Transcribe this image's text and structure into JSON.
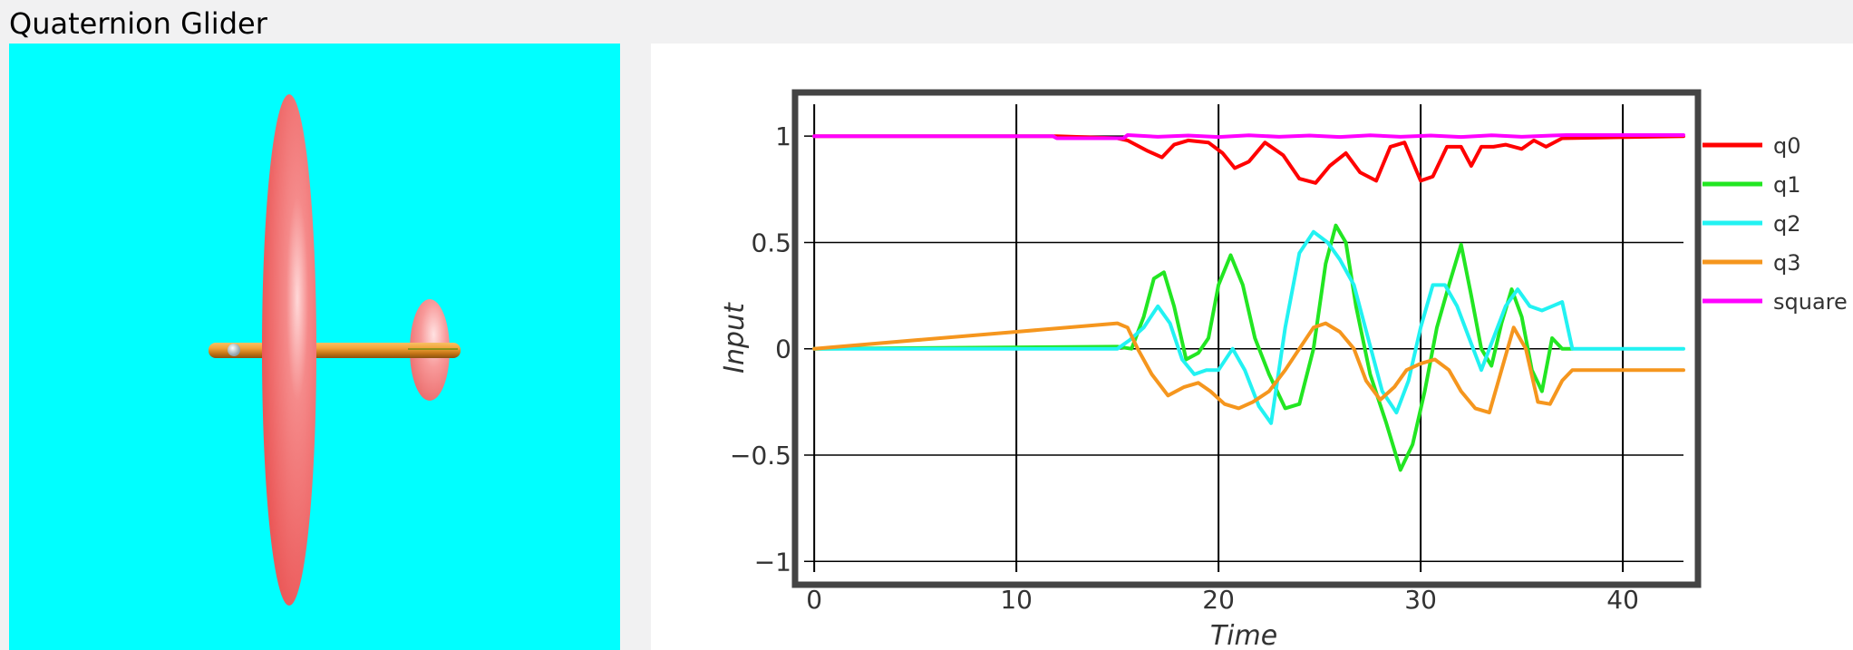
{
  "app": {
    "title": "Quaternion Glider"
  },
  "scene": {
    "background": "#00ffff",
    "wing_color": "#f05a5a",
    "fuselage_color": "#e8a030",
    "icon": "glider-3d-model"
  },
  "chart_data": {
    "type": "line",
    "title": "",
    "xlabel": "Time",
    "ylabel": "Input",
    "xlim": [
      -0.5,
      43
    ],
    "ylim": [
      -1.05,
      1.15
    ],
    "xticks": [
      0,
      10,
      20,
      30,
      40
    ],
    "xtick_labels": [
      "0",
      "10",
      "20",
      "30",
      "40"
    ],
    "yticks": [
      -1,
      -0.5,
      0,
      0.5,
      1
    ],
    "ytick_labels": [
      "−1",
      "−0.5",
      "0",
      "0.5",
      "1"
    ],
    "grid": true,
    "legend_position": "right",
    "series": [
      {
        "name": "q0",
        "color": "#ff0000",
        "x": [
          0,
          12,
          15,
          15.5,
          16.5,
          17.2,
          17.8,
          18.5,
          19.5,
          20.2,
          20.8,
          21.5,
          22.3,
          23.2,
          24,
          24.8,
          25.5,
          26.3,
          27,
          27.8,
          28.5,
          29.2,
          30,
          30.6,
          31.3,
          32,
          32.5,
          33,
          33.6,
          34.2,
          35,
          35.6,
          36.2,
          37,
          43
        ],
        "y": [
          1,
          1,
          0.99,
          0.98,
          0.93,
          0.9,
          0.96,
          0.98,
          0.97,
          0.92,
          0.85,
          0.88,
          0.97,
          0.91,
          0.8,
          0.78,
          0.86,
          0.92,
          0.83,
          0.79,
          0.95,
          0.97,
          0.79,
          0.81,
          0.95,
          0.95,
          0.86,
          0.95,
          0.95,
          0.96,
          0.94,
          0.98,
          0.95,
          0.99,
          1
        ]
      },
      {
        "name": "q1",
        "color": "#22e622",
        "x": [
          0,
          15,
          15.7,
          16.3,
          16.8,
          17.3,
          17.8,
          18.4,
          19,
          19.5,
          20,
          20.6,
          21.2,
          21.8,
          22.5,
          23.3,
          24,
          24.7,
          25.3,
          25.8,
          26.3,
          26.8,
          27.5,
          28.3,
          29,
          29.6,
          30.2,
          30.8,
          31.4,
          32,
          32.5,
          33,
          33.5,
          34,
          34.5,
          35,
          35.5,
          36,
          36.5,
          37,
          37.5
        ],
        "y": [
          0,
          0.01,
          0,
          0.15,
          0.33,
          0.36,
          0.2,
          -0.05,
          -0.02,
          0.05,
          0.3,
          0.44,
          0.3,
          0.05,
          -0.12,
          -0.28,
          -0.26,
          0,
          0.4,
          0.58,
          0.5,
          0.2,
          -0.12,
          -0.35,
          -0.57,
          -0.45,
          -0.2,
          0.1,
          0.3,
          0.49,
          0.25,
          0,
          -0.08,
          0.12,
          0.28,
          0.15,
          -0.1,
          -0.2,
          0.05,
          0,
          0
        ]
      },
      {
        "name": "q2",
        "color": "#22f2f2",
        "x": [
          0,
          15,
          15.6,
          16.3,
          17,
          17.6,
          18.2,
          18.8,
          19.4,
          20,
          20.7,
          21.3,
          22,
          22.6,
          23.3,
          24,
          24.7,
          25.4,
          26,
          26.7,
          27.4,
          28.1,
          28.8,
          29.4,
          30,
          30.6,
          31.2,
          31.8,
          32.4,
          33,
          33.6,
          34.2,
          34.8,
          35.4,
          36,
          36.5,
          37,
          37.5,
          43
        ],
        "y": [
          0,
          0,
          0.04,
          0.1,
          0.2,
          0.12,
          -0.05,
          -0.12,
          -0.1,
          -0.1,
          0,
          -0.1,
          -0.27,
          -0.35,
          0.1,
          0.45,
          0.55,
          0.5,
          0.42,
          0.3,
          0.05,
          -0.2,
          -0.3,
          -0.15,
          0.1,
          0.3,
          0.3,
          0.2,
          0.05,
          -0.1,
          0.05,
          0.2,
          0.28,
          0.2,
          0.18,
          0.2,
          0.22,
          0,
          0
        ]
      },
      {
        "name": "q3",
        "color": "#f5961e",
        "x": [
          0,
          5,
          10,
          15,
          15.5,
          16,
          16.7,
          17.5,
          18.3,
          19,
          19.6,
          20.3,
          21,
          21.7,
          22.5,
          23.3,
          24,
          24.7,
          25.3,
          26,
          26.7,
          27.3,
          28,
          28.7,
          29.3,
          30,
          30.7,
          31.4,
          32,
          32.7,
          33.4,
          34,
          34.6,
          35.2,
          35.8,
          36.4,
          37,
          37.5,
          43
        ],
        "y": [
          0,
          0.04,
          0.08,
          0.12,
          0.1,
          0,
          -0.12,
          -0.22,
          -0.18,
          -0.16,
          -0.2,
          -0.26,
          -0.28,
          -0.25,
          -0.2,
          -0.1,
          0,
          0.1,
          0.12,
          0.08,
          0,
          -0.15,
          -0.24,
          -0.18,
          -0.1,
          -0.07,
          -0.05,
          -0.1,
          -0.2,
          -0.28,
          -0.3,
          -0.1,
          0.1,
          0,
          -0.25,
          -0.26,
          -0.15,
          -0.1,
          -0.1
        ]
      },
      {
        "name": "square",
        "color": "#ff00ff",
        "x": [
          0,
          11.8,
          12,
          15.3,
          15.5,
          17,
          18.5,
          20,
          21.5,
          23,
          24.5,
          26,
          27.5,
          29,
          30.5,
          32,
          33.5,
          35,
          36.5,
          37.2,
          43
        ],
        "y": [
          1,
          1,
          0.99,
          0.99,
          1.005,
          0.997,
          1.003,
          0.996,
          1.004,
          0.997,
          1.003,
          0.996,
          1.004,
          0.997,
          1.003,
          0.996,
          1.004,
          0.997,
          1.003,
          1.005,
          1.005
        ]
      }
    ]
  }
}
